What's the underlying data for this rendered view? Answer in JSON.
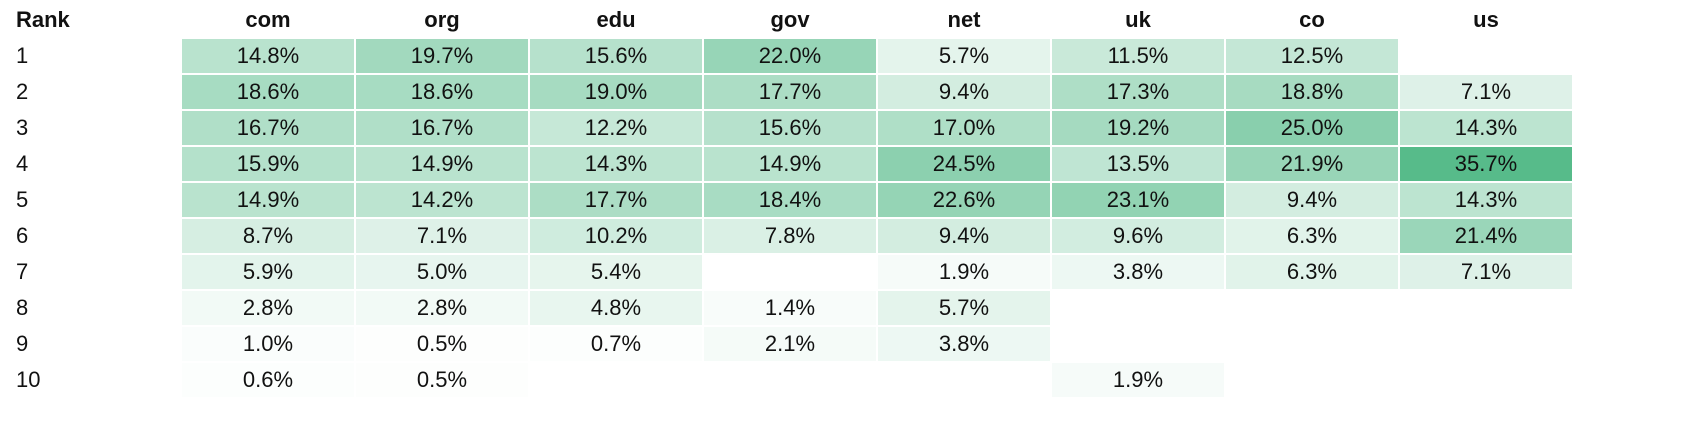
{
  "chart_data": {
    "type": "heatmap",
    "corner_label": "Rank",
    "columns": [
      "com",
      "org",
      "edu",
      "gov",
      "net",
      "uk",
      "co",
      "us"
    ],
    "rows": [
      "1",
      "2",
      "3",
      "4",
      "5",
      "6",
      "7",
      "8",
      "9",
      "10"
    ],
    "values": [
      [
        14.8,
        19.7,
        15.6,
        22.0,
        5.7,
        11.5,
        12.5,
        null
      ],
      [
        18.6,
        18.6,
        19.0,
        17.7,
        9.4,
        17.3,
        18.8,
        7.1
      ],
      [
        16.7,
        16.7,
        12.2,
        15.6,
        17.0,
        19.2,
        25.0,
        14.3
      ],
      [
        15.9,
        14.9,
        14.3,
        14.9,
        24.5,
        13.5,
        21.9,
        35.7
      ],
      [
        14.9,
        14.2,
        17.7,
        18.4,
        22.6,
        23.1,
        9.4,
        14.3
      ],
      [
        8.7,
        7.1,
        10.2,
        7.8,
        9.4,
        9.6,
        6.3,
        21.4
      ],
      [
        5.9,
        5.0,
        5.4,
        null,
        1.9,
        3.8,
        6.3,
        7.1
      ],
      [
        2.8,
        2.8,
        4.8,
        1.4,
        5.7,
        null,
        null,
        null
      ],
      [
        1.0,
        0.5,
        0.7,
        2.1,
        3.8,
        null,
        null,
        null
      ],
      [
        0.6,
        0.5,
        null,
        null,
        null,
        1.9,
        null,
        null
      ]
    ],
    "value_suffix": "%",
    "color_scale": {
      "low": "#ffffff",
      "high": "#57bb8a"
    }
  }
}
